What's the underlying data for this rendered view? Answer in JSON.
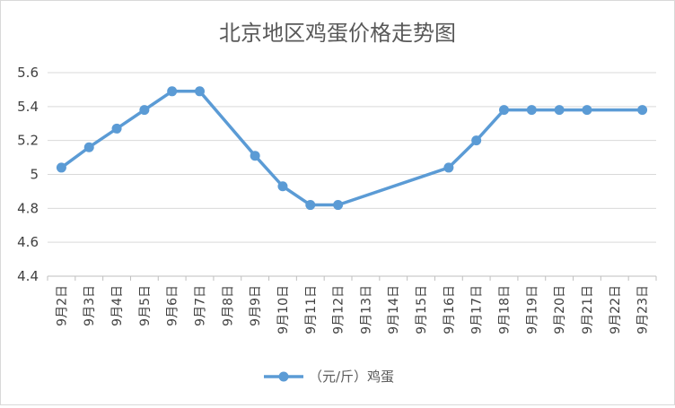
{
  "chart_data": {
    "type": "line",
    "title": "北京地区鸡蛋价格走势图",
    "xlabel": "",
    "ylabel": "",
    "categories": [
      "9月2日",
      "9月3日",
      "9月4日",
      "9月5日",
      "9月6日",
      "9月7日",
      "9月8日",
      "9月9日",
      "9月10日",
      "9月11日",
      "9月12日",
      "9月13日",
      "9月14日",
      "9月15日",
      "9月16日",
      "9月17日",
      "9月18日",
      "9月19日",
      "9月20日",
      "9月21日",
      "9月22日",
      "9月23日"
    ],
    "series": [
      {
        "name": "（元/斤）鸡蛋",
        "color": "#5b9bd5",
        "values": [
          5.04,
          5.16,
          5.27,
          5.38,
          5.49,
          5.49,
          null,
          5.11,
          4.93,
          4.82,
          4.82,
          null,
          null,
          null,
          5.04,
          5.2,
          5.38,
          5.38,
          5.38,
          5.38,
          null,
          5.38
        ]
      }
    ],
    "ylim": [
      4.4,
      5.6
    ],
    "yticks": [
      "4.4",
      "4.6",
      "4.8",
      "5",
      "5.2",
      "5.4",
      "5.6"
    ],
    "grid": true,
    "legend": "bottom"
  }
}
